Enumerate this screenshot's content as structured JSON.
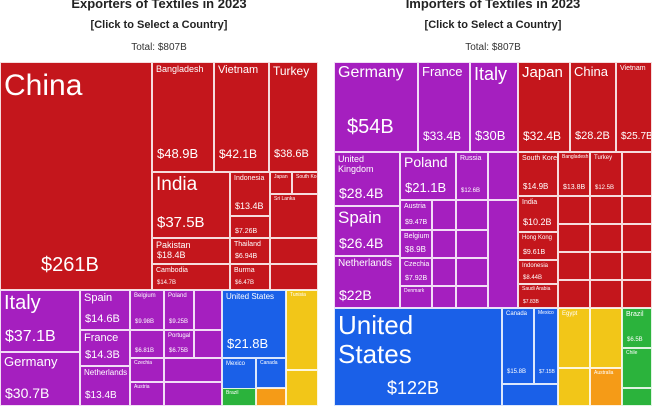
{
  "exporters": {
    "title": "Exporters of Textiles in 2023",
    "subtitle": "[Click to Select a Country]",
    "total": "Total: $807B"
  },
  "importers": {
    "title": "Importers of Textiles in 2023",
    "subtitle": "[Click to Select a Country]",
    "total": "Total: $807B"
  },
  "colors": {
    "asia": "#c4161c",
    "europe": "#a51fbf",
    "north_america": "#1a60e8",
    "south_america": "#2bb33c",
    "africa": "#f2c618",
    "oceania": "#f59b17"
  },
  "chart_data": [
    {
      "type": "treemap",
      "title": "Exporters of Textiles in 2023",
      "subtitle": "[Click to Select a Country]",
      "total_label": "Total: $807B",
      "units": "USD billions",
      "tiles": [
        {
          "name": "China",
          "value_label": "$261B",
          "value": 261,
          "region": "Asia"
        },
        {
          "name": "Bangladesh",
          "value_label": "$48.9B",
          "value": 48.9,
          "region": "Asia"
        },
        {
          "name": "Vietnam",
          "value_label": "$42.1B",
          "value": 42.1,
          "region": "Asia"
        },
        {
          "name": "Turkey",
          "value_label": "$38.6B",
          "value": 38.6,
          "region": "Asia"
        },
        {
          "name": "India",
          "value_label": "$37.5B",
          "value": 37.5,
          "region": "Asia"
        },
        {
          "name": "Indonesia",
          "value_label": "$13.4B",
          "value": 13.4,
          "region": "Asia"
        },
        {
          "name": "Japan",
          "value_label": "",
          "region": "Asia"
        },
        {
          "name": "South Korea",
          "value_label": "",
          "region": "Asia"
        },
        {
          "name": "",
          "value_label": "$7.26B",
          "value": 7.26,
          "region": "Asia"
        },
        {
          "name": "Sri Lanka",
          "value_label": "",
          "region": "Asia"
        },
        {
          "name": "Pakistan",
          "value_label": "$18.4B",
          "value": 18.4,
          "region": "Asia"
        },
        {
          "name": "Thailand",
          "value_label": "$6.94B",
          "value": 6.94,
          "region": "Asia"
        },
        {
          "name": "Cambodia",
          "value_label": "$14.7B",
          "value": 14.7,
          "region": "Asia"
        },
        {
          "name": "Burma",
          "value_label": "$6.47B",
          "value": 6.47,
          "region": "Asia"
        },
        {
          "name": "Italy",
          "value_label": "$37.1B",
          "value": 37.1,
          "region": "Europe"
        },
        {
          "name": "Germany",
          "value_label": "$30.7B",
          "value": 30.7,
          "region": "Europe"
        },
        {
          "name": "Spain",
          "value_label": "$14.6B",
          "value": 14.6,
          "region": "Europe"
        },
        {
          "name": "France",
          "value_label": "$14.3B",
          "value": 14.3,
          "region": "Europe"
        },
        {
          "name": "Netherlands",
          "value_label": "$13.4B",
          "value": 13.4,
          "region": "Europe"
        },
        {
          "name": "Belgium",
          "value_label": "$9.98B",
          "value": 9.98,
          "region": "Europe"
        },
        {
          "name": "Poland",
          "value_label": "$9.25B",
          "value": 9.25,
          "region": "Europe"
        },
        {
          "name": "",
          "value_label": "$6.81B",
          "value": 6.81,
          "region": "Europe"
        },
        {
          "name": "Portugal",
          "value_label": "$6.75B",
          "value": 6.75,
          "region": "Europe"
        },
        {
          "name": "Czechia",
          "value_label": "",
          "region": "Europe"
        },
        {
          "name": "Austria",
          "value_label": "",
          "region": "Europe"
        },
        {
          "name": "United States",
          "value_label": "$21.8B",
          "value": 21.8,
          "region": "North America"
        },
        {
          "name": "Mexico",
          "value_label": "$6.03B",
          "value": 6.03,
          "region": "North America"
        },
        {
          "name": "Canada",
          "value_label": "",
          "region": "North America"
        },
        {
          "name": "Tunisia",
          "value_label": "",
          "region": "Africa"
        },
        {
          "name": "Brazil",
          "value_label": "",
          "region": "South America"
        }
      ]
    },
    {
      "type": "treemap",
      "title": "Importers of Textiles in 2023",
      "subtitle": "[Click to Select a Country]",
      "total_label": "Total: $807B",
      "units": "USD billions",
      "tiles": [
        {
          "name": "Germany",
          "value_label": "$54B",
          "value": 54,
          "region": "Europe"
        },
        {
          "name": "France",
          "value_label": "$33.4B",
          "value": 33.4,
          "region": "Europe"
        },
        {
          "name": "Italy",
          "value_label": "$30B",
          "value": 30,
          "region": "Europe"
        },
        {
          "name": "United Kingdom",
          "value_label": "$28.4B",
          "value": 28.4,
          "region": "Europe"
        },
        {
          "name": "Poland",
          "value_label": "$21.1B",
          "value": 21.1,
          "region": "Europe"
        },
        {
          "name": "Russia",
          "value_label": "$12.6B",
          "value": 12.6,
          "region": "Europe"
        },
        {
          "name": "Spain",
          "value_label": "$26.4B",
          "value": 26.4,
          "region": "Europe"
        },
        {
          "name": "Austria",
          "value_label": "$9.47B",
          "value": 9.47,
          "region": "Europe"
        },
        {
          "name": "Belgium",
          "value_label": "$8.9B",
          "value": 8.9,
          "region": "Europe"
        },
        {
          "name": "Netherlands",
          "value_label": "$22B",
          "value": 22,
          "region": "Europe"
        },
        {
          "name": "Czechia",
          "value_label": "$7.92B",
          "value": 7.92,
          "region": "Europe"
        },
        {
          "name": "Denmark",
          "value_label": "",
          "region": "Europe"
        },
        {
          "name": "Japan",
          "value_label": "$32.4B",
          "value": 32.4,
          "region": "Asia"
        },
        {
          "name": "China",
          "value_label": "$28.2B",
          "value": 28.2,
          "region": "Asia"
        },
        {
          "name": "Vietnam",
          "value_label": "$25.7B",
          "value": 25.7,
          "region": "Asia"
        },
        {
          "name": "South Korea",
          "value_label": "$14.9B",
          "value": 14.9,
          "region": "Asia"
        },
        {
          "name": "Bangladesh",
          "value_label": "$13.8B",
          "value": 13.8,
          "region": "Asia"
        },
        {
          "name": "Turkey",
          "value_label": "$12.5B",
          "value": 12.5,
          "region": "Asia"
        },
        {
          "name": "India",
          "value_label": "$10.2B",
          "value": 10.2,
          "region": "Asia"
        },
        {
          "name": "Hong Kong",
          "value_label": "$9.61B",
          "value": 9.61,
          "region": "Asia"
        },
        {
          "name": "Indonesia",
          "value_label": "$8.44B",
          "value": 8.44,
          "region": "Asia"
        },
        {
          "name": "Saudi Arabia",
          "value_label": "$7.83B",
          "value": 7.83,
          "region": "Asia"
        },
        {
          "name": "United States",
          "value_label": "$122B",
          "value": 122,
          "region": "North America"
        },
        {
          "name": "Canada",
          "value_label": "$15.8B",
          "value": 15.8,
          "region": "North America"
        },
        {
          "name": "Mexico",
          "value_label": "$7.15B",
          "value": 7.15,
          "region": "North America"
        },
        {
          "name": "Egypt",
          "value_label": "",
          "region": "Africa"
        },
        {
          "name": "Brazil",
          "value_label": "$6.5B",
          "value": 6.5,
          "region": "South America"
        },
        {
          "name": "Chile",
          "value_label": "",
          "region": "South America"
        },
        {
          "name": "Australia",
          "value_label": "",
          "region": "Oceania"
        }
      ]
    }
  ]
}
